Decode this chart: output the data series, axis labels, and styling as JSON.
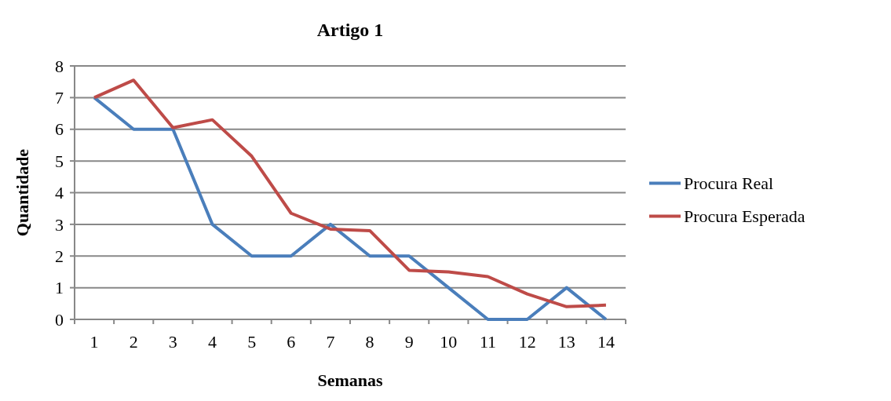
{
  "chart_data": {
    "type": "line",
    "title": "Artigo 1",
    "xlabel": "Semanas",
    "ylabel": "Quantidade",
    "categories": [
      "1",
      "2",
      "3",
      "4",
      "5",
      "6",
      "7",
      "8",
      "9",
      "10",
      "11",
      "12",
      "13",
      "14"
    ],
    "series": [
      {
        "name": "Procura Real",
        "color": "#4a7ebb",
        "values": [
          7,
          6,
          6,
          3,
          2,
          2,
          3,
          2,
          2,
          1,
          0,
          0,
          1,
          0
        ]
      },
      {
        "name": "Procura Esperada",
        "color": "#be4b48",
        "values": [
          7,
          7.55,
          6.05,
          6.3,
          5.15,
          3.35,
          2.85,
          2.8,
          1.55,
          1.5,
          1.35,
          0.8,
          0.4,
          0.45
        ]
      }
    ],
    "ylim": [
      0,
      8
    ],
    "yticks": [
      0,
      1,
      2,
      3,
      4,
      5,
      6,
      7,
      8
    ],
    "grid": "y",
    "legend": "right",
    "marker": "none",
    "line_style": "solid"
  }
}
